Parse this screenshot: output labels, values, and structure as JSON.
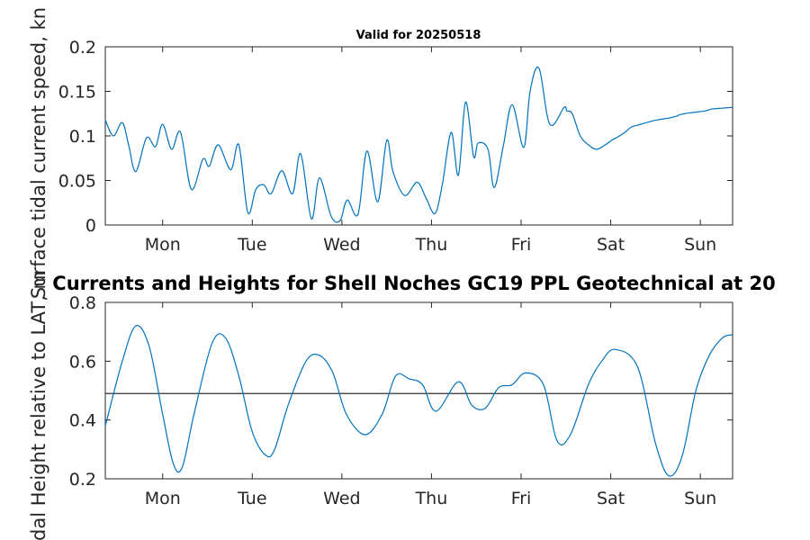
{
  "figure": {
    "top_title": "Valid for 20250518",
    "main_title": "Currents and Heights for Shell Noches   GC19 PPL  Geotechnical at 20"
  },
  "chart_data": [
    {
      "type": "line",
      "ylabel": "Surface tidal current speed, kn",
      "ylim": [
        0,
        0.2
      ],
      "yticks": [
        "0",
        "0.05",
        "0.1",
        "0.15",
        "0.2"
      ],
      "xticks": [
        "Mon",
        "Tue",
        "Wed",
        "Thu",
        "Fri",
        "Sat",
        "Sun"
      ],
      "xlim": [
        -0.64,
        6.36
      ],
      "grid": false,
      "series": [
        {
          "color": "#0072BD",
          "x": [
            -0.64,
            -0.55,
            -0.45,
            -0.38,
            -0.3,
            -0.18,
            -0.08,
            0.0,
            0.1,
            0.2,
            0.32,
            0.45,
            0.52,
            0.62,
            0.76,
            0.85,
            0.95,
            1.04,
            1.13,
            1.21,
            1.33,
            1.45,
            1.54,
            1.66,
            1.75,
            1.88,
            1.98,
            2.06,
            2.18,
            2.28,
            2.4,
            2.5,
            2.57,
            2.7,
            2.84,
            2.94,
            3.04,
            3.12,
            3.22,
            3.3,
            3.38,
            3.47,
            3.52,
            3.63,
            3.7,
            3.8,
            3.9,
            4.03,
            4.1,
            4.2,
            4.32,
            4.48,
            4.51,
            4.57,
            4.66,
            4.75,
            4.84,
            4.94,
            5.01,
            5.1,
            5.17,
            5.23,
            5.3,
            5.4,
            5.52,
            5.65,
            5.73,
            5.78,
            5.89,
            6.05,
            6.12,
            6.22,
            6.36
          ],
          "y": [
            0.118,
            0.1,
            0.115,
            0.09,
            0.06,
            0.098,
            0.088,
            0.113,
            0.085,
            0.104,
            0.04,
            0.074,
            0.066,
            0.09,
            0.062,
            0.09,
            0.014,
            0.04,
            0.045,
            0.035,
            0.061,
            0.035,
            0.08,
            0.007,
            0.053,
            0.01,
            0.005,
            0.028,
            0.012,
            0.083,
            0.026,
            0.095,
            0.06,
            0.033,
            0.048,
            0.03,
            0.013,
            0.045,
            0.104,
            0.056,
            0.138,
            0.077,
            0.092,
            0.085,
            0.042,
            0.088,
            0.135,
            0.087,
            0.15,
            0.176,
            0.113,
            0.132,
            0.128,
            0.125,
            0.1,
            0.09,
            0.085,
            0.09,
            0.095,
            0.1,
            0.105,
            0.11,
            0.112,
            0.115,
            0.118,
            0.12,
            0.122,
            0.124,
            0.126,
            0.128,
            0.13,
            0.131,
            0.132
          ]
        }
      ]
    },
    {
      "type": "line",
      "ylabel": "Tidal Height relative to LAT, m",
      "ylim": [
        0.2,
        0.8
      ],
      "yticks": [
        "0.2",
        "0.4",
        "0.6",
        "0.8"
      ],
      "xticks": [
        "Mon",
        "Tue",
        "Wed",
        "Thu",
        "Fri",
        "Sat",
        "Sun"
      ],
      "xlim": [
        -0.64,
        6.36
      ],
      "grid": false,
      "reference_line": 0.49,
      "series": [
        {
          "color": "#0072BD",
          "x": [
            -0.64,
            -0.45,
            -0.3,
            -0.15,
            0.0,
            0.12,
            0.22,
            0.35,
            0.55,
            0.7,
            0.85,
            1.0,
            1.15,
            1.25,
            1.4,
            1.6,
            1.75,
            1.9,
            2.05,
            2.26,
            2.45,
            2.6,
            2.75,
            2.9,
            3.05,
            3.3,
            3.45,
            3.6,
            3.75,
            3.9,
            4.05,
            4.25,
            4.4,
            4.55,
            4.75,
            4.9,
            5.05,
            5.3,
            5.5,
            5.65,
            5.8,
            5.95,
            6.1,
            6.25,
            6.36
          ],
          "y": [
            0.38,
            0.6,
            0.72,
            0.65,
            0.42,
            0.25,
            0.24,
            0.42,
            0.66,
            0.68,
            0.55,
            0.36,
            0.28,
            0.3,
            0.45,
            0.6,
            0.62,
            0.56,
            0.42,
            0.35,
            0.42,
            0.55,
            0.54,
            0.52,
            0.43,
            0.53,
            0.45,
            0.44,
            0.51,
            0.52,
            0.56,
            0.52,
            0.33,
            0.35,
            0.52,
            0.6,
            0.64,
            0.58,
            0.32,
            0.21,
            0.28,
            0.5,
            0.62,
            0.68,
            0.69
          ]
        }
      ]
    }
  ]
}
